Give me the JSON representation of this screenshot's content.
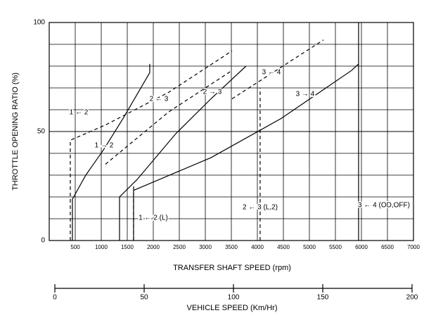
{
  "chart_data": {
    "type": "line",
    "y_label": "THROTTLE OPENING RATIO (%)",
    "x_label": "TRANSFER SHAFT SPEED (rpm)",
    "x2_label": "VEHICLE SPEED (Km/Hr)",
    "xlim": [
      0,
      7000
    ],
    "xticks": [
      500,
      1000,
      1500,
      2000,
      2500,
      3000,
      3500,
      4000,
      4500,
      5000,
      5500,
      6000,
      6500,
      7000
    ],
    "ylim": [
      0,
      100
    ],
    "yticks": [
      0,
      50,
      100
    ],
    "y_minor_ticks": [
      10,
      20,
      30,
      40,
      60,
      70,
      80,
      90
    ],
    "x2lim": [
      0,
      200
    ],
    "x2ticks": [
      0,
      50,
      100,
      150,
      200
    ],
    "grid": true,
    "color": "#000000",
    "series": [
      {
        "name": "1 → 2",
        "dashed": false,
        "x": [
          446,
          446,
          703,
          1054,
          1419,
          1932,
          1932
        ],
        "values": [
          0,
          19,
          30,
          42,
          56,
          77,
          81
        ]
      },
      {
        "name": "1 ← 2",
        "dashed": true,
        "x": [
          405,
          405,
          1081,
          2297,
          3513
        ],
        "values": [
          0,
          46,
          53,
          68,
          87
        ]
      },
      {
        "name": "2 → 3",
        "dashed": false,
        "x": [
          1351,
          1351,
          1689,
          2432,
          3108,
          3783
        ],
        "values": [
          0,
          20,
          28,
          49,
          65,
          80
        ]
      },
      {
        "name": "2 ← 3",
        "dashed": true,
        "x": [
          1081,
          2297,
          3513
        ],
        "values": [
          35,
          59,
          78
        ]
      },
      {
        "name": "3 → 4",
        "dashed": false,
        "x": [
          1621,
          1621,
          3108,
          4459,
          5810,
          5945,
          5945
        ],
        "values": [
          0,
          23,
          38,
          56,
          78,
          81,
          100
        ]
      },
      {
        "name": "3 ← 4",
        "dashed": true,
        "x": [
          3513,
          5270
        ],
        "values": [
          65,
          92
        ]
      },
      {
        "name": "1 ← 2 (L)",
        "dashed": true,
        "x": [
          1621,
          1621
        ],
        "values": [
          0,
          25
        ]
      },
      {
        "name": "2 ← 3 (L,2)",
        "dashed": true,
        "x": [
          4053,
          4053
        ],
        "values": [
          0,
          70
        ]
      },
      {
        "name": "3 ← 4 (OD,OFF)",
        "dashed": false,
        "x": [
          5945,
          5945
        ],
        "values": [
          0,
          81
        ]
      }
    ]
  }
}
